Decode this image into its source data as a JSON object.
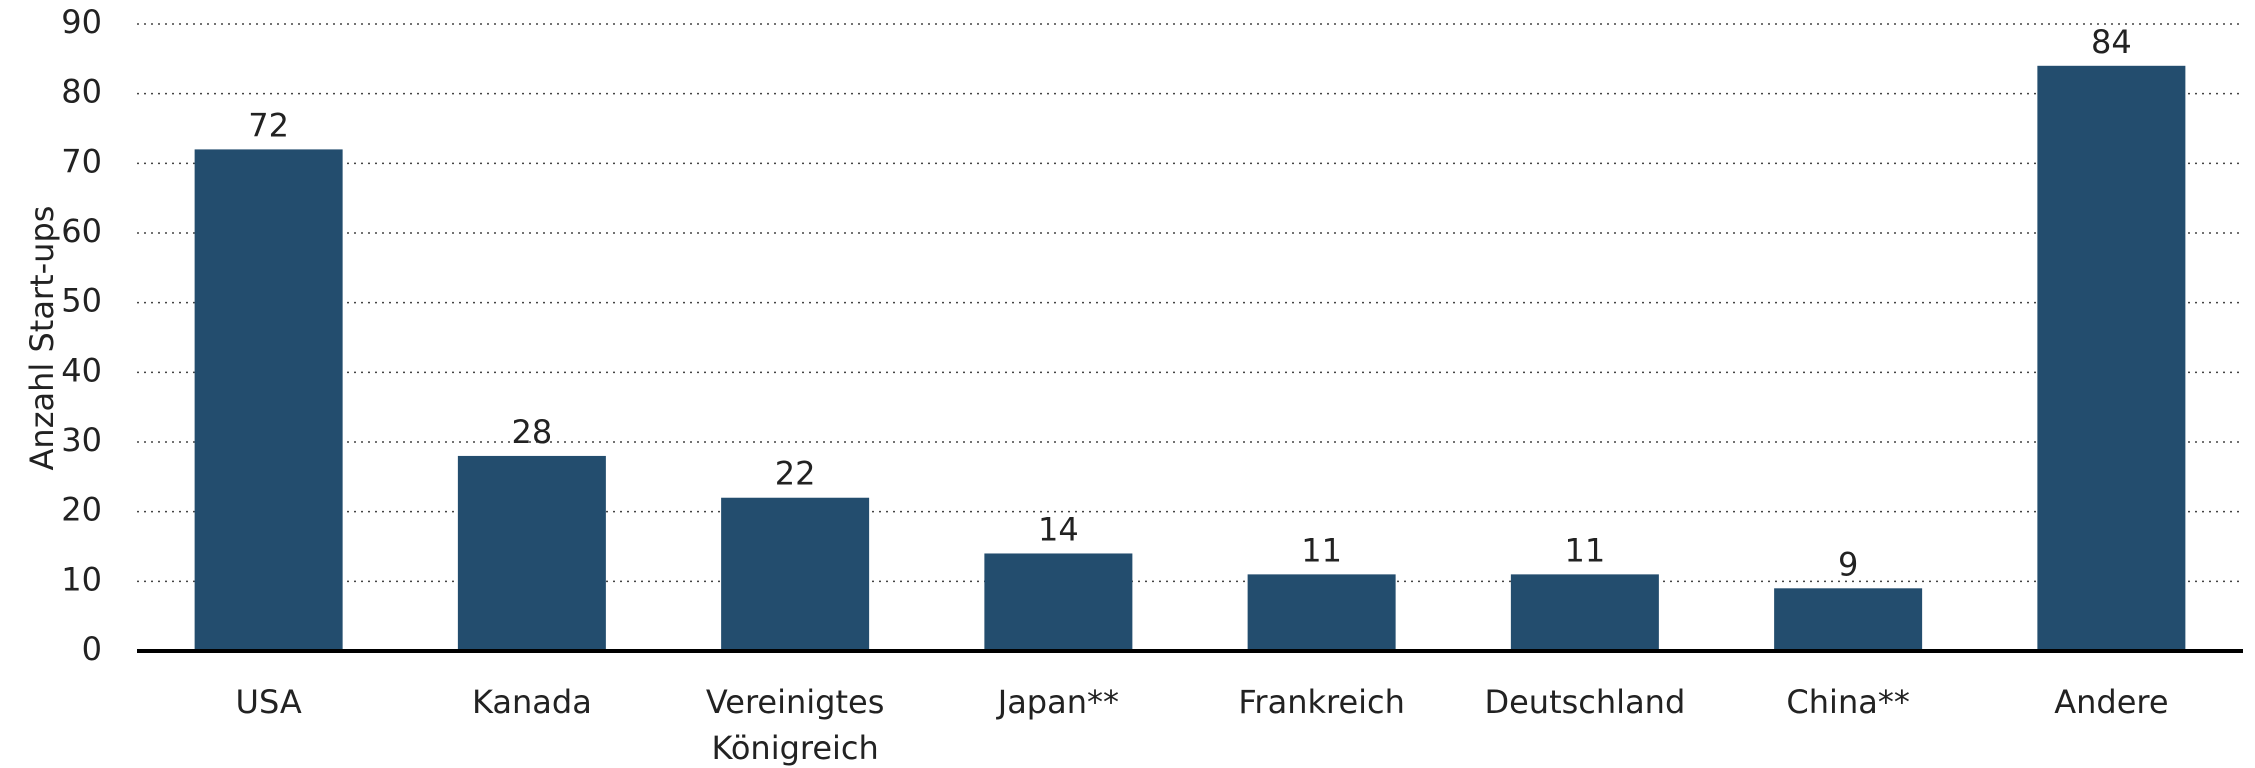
{
  "chart_data": {
    "type": "bar",
    "y_label": "Anzahl Start-ups",
    "categories": [
      "USA",
      "Kanada",
      "Vereinigtes Königreich",
      "Japan**",
      "Frankreich",
      "Deutschland",
      "China**",
      "Andere"
    ],
    "values": [
      72,
      28,
      22,
      14,
      11,
      11,
      9,
      84
    ],
    "color": "#234d6e",
    "ylim": [
      0,
      90
    ],
    "yticks": [
      0,
      10,
      20,
      30,
      40,
      50,
      60,
      70,
      80,
      90
    ],
    "grid": true
  }
}
